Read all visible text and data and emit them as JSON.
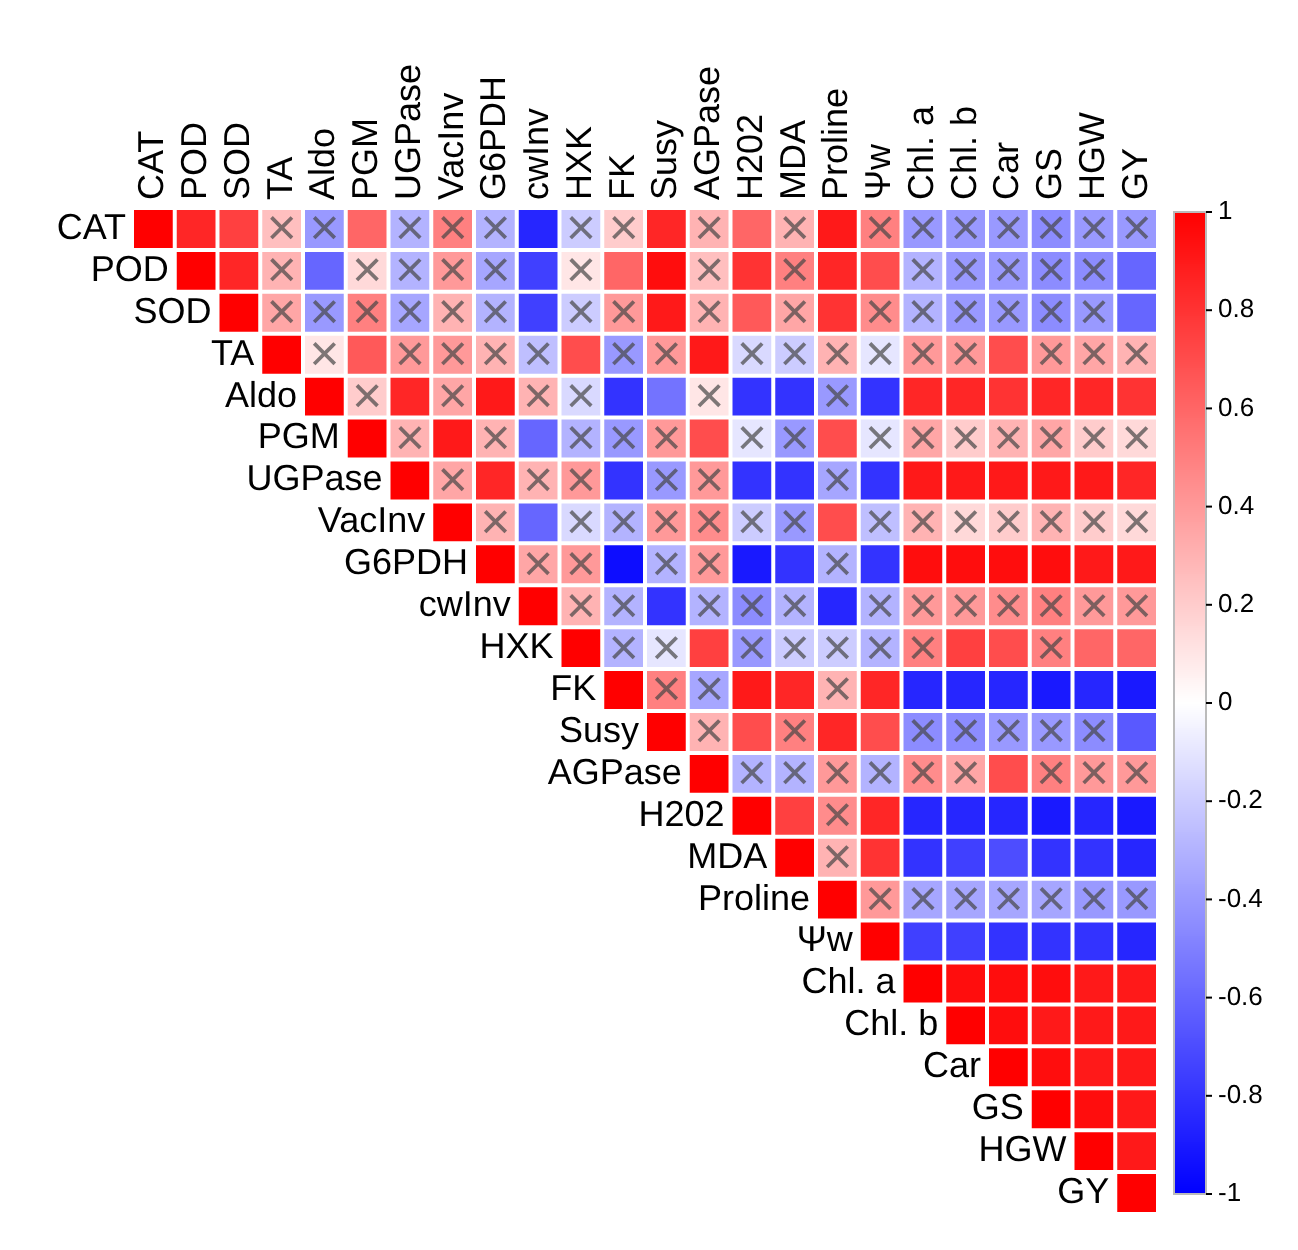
{
  "chart_data": {
    "type": "heatmap",
    "categories": [
      "CAT",
      "POD",
      "SOD",
      "TA",
      "Aldo",
      "PGM",
      "UGPase",
      "VacInv",
      "G6PDH",
      "cwInv",
      "HXK",
      "FK",
      "Susy",
      "AGPase",
      "H202",
      "MDA",
      "Proline",
      "Ψw",
      "Chl. a",
      "Chl. b",
      "Car",
      "GS",
      "HGW",
      "GY"
    ],
    "y_categories": [
      "CAT",
      "POD",
      "SOD",
      "TA",
      "Aldo",
      "PGM",
      "UGPase",
      "VacInv",
      "G6PDH",
      "cwInv",
      "HXK",
      "FK",
      "Susy",
      "AGPase",
      "H202",
      "MDA",
      "Proline",
      "Ψw",
      "Chl. a",
      "Chl. b",
      "Car",
      "GS",
      "HGW",
      "GY"
    ],
    "cells": [
      [
        1,
        0.85,
        0.75,
        0.25,
        -0.4,
        0.6,
        -0.3,
        0.5,
        -0.3,
        -0.85,
        -0.2,
        0.2,
        0.85,
        0.3,
        0.6,
        0.3,
        0.9,
        0.5,
        -0.4,
        -0.4,
        -0.4,
        -0.45,
        -0.4,
        -0.4
      ],
      [
        null,
        1,
        0.85,
        0.3,
        -0.6,
        0.15,
        -0.3,
        0.4,
        -0.35,
        -0.75,
        0.1,
        0.6,
        0.95,
        0.25,
        0.8,
        0.5,
        0.85,
        0.7,
        -0.3,
        -0.4,
        -0.4,
        -0.45,
        -0.45,
        -0.6
      ],
      [
        null,
        null,
        1,
        0.35,
        -0.4,
        0.5,
        -0.35,
        0.3,
        -0.3,
        -0.75,
        -0.2,
        0.4,
        0.9,
        0.3,
        0.65,
        0.35,
        0.8,
        0.45,
        -0.3,
        -0.4,
        -0.4,
        -0.45,
        -0.4,
        -0.6
      ],
      [
        null,
        null,
        null,
        1,
        0.1,
        0.65,
        0.4,
        0.4,
        0.3,
        -0.25,
        0.7,
        -0.4,
        0.4,
        0.9,
        -0.15,
        -0.2,
        0.3,
        -0.1,
        0.4,
        0.4,
        0.7,
        0.4,
        0.35,
        0.3
      ],
      [
        null,
        null,
        null,
        null,
        1,
        0.2,
        0.85,
        0.35,
        0.9,
        0.3,
        -0.15,
        -0.8,
        -0.55,
        0.1,
        -0.8,
        -0.8,
        -0.4,
        -0.8,
        0.85,
        0.85,
        0.8,
        0.85,
        0.85,
        0.8
      ],
      [
        null,
        null,
        null,
        null,
        null,
        1,
        0.3,
        0.9,
        0.3,
        -0.6,
        -0.3,
        -0.4,
        0.4,
        0.7,
        -0.1,
        -0.4,
        0.7,
        -0.1,
        0.35,
        0.2,
        0.3,
        0.35,
        0.2,
        0.15
      ],
      [
        null,
        null,
        null,
        null,
        null,
        null,
        1,
        0.35,
        0.85,
        0.3,
        0.4,
        -0.8,
        -0.4,
        0.4,
        -0.8,
        -0.8,
        -0.35,
        -0.8,
        0.9,
        0.9,
        0.9,
        0.9,
        0.9,
        0.85
      ],
      [
        null,
        null,
        null,
        null,
        null,
        null,
        null,
        1,
        0.3,
        -0.6,
        -0.15,
        -0.3,
        0.4,
        0.45,
        -0.2,
        -0.4,
        0.7,
        -0.25,
        0.3,
        0.15,
        0.2,
        0.3,
        0.2,
        0.15
      ],
      [
        null,
        null,
        null,
        null,
        null,
        null,
        null,
        null,
        1,
        0.35,
        0.4,
        -0.95,
        -0.3,
        0.4,
        -0.9,
        -0.8,
        -0.3,
        -0.8,
        0.95,
        0.95,
        0.95,
        0.95,
        0.9,
        0.9
      ],
      [
        null,
        null,
        null,
        null,
        null,
        null,
        null,
        null,
        null,
        1,
        0.3,
        -0.3,
        -0.8,
        -0.3,
        -0.45,
        -0.3,
        -0.85,
        -0.3,
        0.4,
        0.4,
        0.45,
        0.5,
        0.4,
        0.4
      ],
      [
        null,
        null,
        null,
        null,
        null,
        null,
        null,
        null,
        null,
        null,
        1,
        -0.3,
        -0.1,
        0.75,
        -0.4,
        -0.2,
        -0.2,
        -0.3,
        0.5,
        0.75,
        0.7,
        0.5,
        0.6,
        0.6
      ],
      [
        null,
        null,
        null,
        null,
        null,
        null,
        null,
        null,
        null,
        null,
        null,
        1,
        0.5,
        -0.35,
        0.9,
        0.85,
        0.3,
        0.85,
        -0.85,
        -0.85,
        -0.85,
        -0.9,
        -0.85,
        -0.9
      ],
      [
        null,
        null,
        null,
        null,
        null,
        null,
        null,
        null,
        null,
        null,
        null,
        null,
        1,
        0.3,
        0.7,
        0.5,
        0.85,
        0.7,
        -0.45,
        -0.45,
        -0.4,
        -0.4,
        -0.45,
        -0.65
      ],
      [
        null,
        null,
        null,
        null,
        null,
        null,
        null,
        null,
        null,
        null,
        null,
        null,
        null,
        1,
        -0.3,
        -0.3,
        0.4,
        -0.3,
        0.45,
        0.35,
        0.7,
        0.5,
        0.4,
        0.4
      ],
      [
        null,
        null,
        null,
        null,
        null,
        null,
        null,
        null,
        null,
        null,
        null,
        null,
        null,
        null,
        1,
        0.75,
        0.45,
        0.85,
        -0.85,
        -0.85,
        -0.85,
        -0.9,
        -0.85,
        -0.9
      ],
      [
        null,
        null,
        null,
        null,
        null,
        null,
        null,
        null,
        null,
        null,
        null,
        null,
        null,
        null,
        null,
        1,
        0.3,
        0.8,
        -0.8,
        -0.75,
        -0.7,
        -0.8,
        -0.8,
        -0.85
      ],
      [
        null,
        null,
        null,
        null,
        null,
        null,
        null,
        null,
        null,
        null,
        null,
        null,
        null,
        null,
        null,
        null,
        1,
        0.4,
        -0.35,
        -0.35,
        -0.35,
        -0.35,
        -0.4,
        -0.4
      ],
      [
        null,
        null,
        null,
        null,
        null,
        null,
        null,
        null,
        null,
        null,
        null,
        null,
        null,
        null,
        null,
        null,
        null,
        1,
        -0.75,
        -0.75,
        -0.8,
        -0.8,
        -0.8,
        -0.85
      ],
      [
        null,
        null,
        null,
        null,
        null,
        null,
        null,
        null,
        null,
        null,
        null,
        null,
        null,
        null,
        null,
        null,
        null,
        null,
        1,
        0.95,
        0.95,
        0.95,
        0.9,
        0.9
      ],
      [
        null,
        null,
        null,
        null,
        null,
        null,
        null,
        null,
        null,
        null,
        null,
        null,
        null,
        null,
        null,
        null,
        null,
        null,
        null,
        1,
        0.95,
        0.9,
        0.9,
        0.9
      ],
      [
        null,
        null,
        null,
        null,
        null,
        null,
        null,
        null,
        null,
        null,
        null,
        null,
        null,
        null,
        null,
        null,
        null,
        null,
        null,
        null,
        1,
        0.95,
        0.9,
        0.9
      ],
      [
        null,
        null,
        null,
        null,
        null,
        null,
        null,
        null,
        null,
        null,
        null,
        null,
        null,
        null,
        null,
        null,
        null,
        null,
        null,
        null,
        null,
        1,
        0.95,
        0.9
      ],
      [
        null,
        null,
        null,
        null,
        null,
        null,
        null,
        null,
        null,
        null,
        null,
        null,
        null,
        null,
        null,
        null,
        null,
        null,
        null,
        null,
        null,
        null,
        1,
        0.9
      ],
      [
        null,
        null,
        null,
        null,
        null,
        null,
        null,
        null,
        null,
        null,
        null,
        null,
        null,
        null,
        null,
        null,
        null,
        null,
        null,
        null,
        null,
        null,
        null,
        1
      ]
    ],
    "cell_labels": [
      [
        null,
        null,
        null,
        "×",
        "×",
        null,
        "×",
        "×",
        "×",
        null,
        "×",
        "×",
        null,
        "×",
        null,
        "×",
        null,
        "×",
        "×",
        "×",
        "×",
        "×",
        "×",
        "×"
      ],
      [
        null,
        null,
        null,
        "×",
        null,
        "×",
        "×",
        "×",
        "×",
        null,
        "×",
        null,
        null,
        "×",
        null,
        "×",
        null,
        null,
        "×",
        "×",
        "×",
        "×",
        "×",
        null
      ],
      [
        null,
        null,
        null,
        "×",
        "×",
        "×",
        "×",
        "×",
        "×",
        null,
        "×",
        "×",
        null,
        "×",
        null,
        "×",
        null,
        "×",
        "×",
        "×",
        "×",
        "×",
        "×",
        null
      ],
      [
        null,
        null,
        null,
        null,
        "×",
        null,
        "×",
        "×",
        "×",
        "×",
        null,
        "×",
        "×",
        null,
        "×",
        "×",
        "×",
        "×",
        "×",
        "×",
        null,
        "×",
        "×",
        "×"
      ],
      [
        null,
        null,
        null,
        null,
        null,
        "×",
        null,
        "×",
        null,
        "×",
        "×",
        null,
        null,
        "×",
        null,
        null,
        "×",
        null,
        null,
        null,
        null,
        null,
        null,
        null
      ],
      [
        null,
        null,
        null,
        null,
        null,
        null,
        "×",
        null,
        "×",
        null,
        "×",
        "×",
        "×",
        null,
        "×",
        "×",
        null,
        "×",
        "×",
        "×",
        "×",
        "×",
        "×",
        "×"
      ],
      [
        null,
        null,
        null,
        null,
        null,
        null,
        null,
        "×",
        null,
        "×",
        "×",
        null,
        "×",
        "×",
        null,
        null,
        "×",
        null,
        null,
        null,
        null,
        null,
        null,
        null
      ],
      [
        null,
        null,
        null,
        null,
        null,
        null,
        null,
        null,
        "×",
        null,
        "×",
        "×",
        "×",
        "×",
        "×",
        "×",
        null,
        "×",
        "×",
        "×",
        "×",
        "×",
        "×",
        "×"
      ],
      [
        null,
        null,
        null,
        null,
        null,
        null,
        null,
        null,
        null,
        "×",
        "×",
        null,
        "×",
        "×",
        null,
        null,
        "×",
        null,
        null,
        null,
        null,
        null,
        null,
        null
      ],
      [
        null,
        null,
        null,
        null,
        null,
        null,
        null,
        null,
        null,
        null,
        "×",
        "×",
        null,
        "×",
        "×",
        "×",
        null,
        "×",
        "×",
        "×",
        "×",
        "×",
        "×",
        "×"
      ],
      [
        null,
        null,
        null,
        null,
        null,
        null,
        null,
        null,
        null,
        null,
        null,
        "×",
        "×",
        null,
        "×",
        "×",
        "×",
        "×",
        "×",
        null,
        null,
        "×",
        null,
        null
      ],
      [
        null,
        null,
        null,
        null,
        null,
        null,
        null,
        null,
        null,
        null,
        null,
        null,
        "×",
        "×",
        null,
        null,
        "×",
        null,
        null,
        null,
        null,
        null,
        null,
        null
      ],
      [
        null,
        null,
        null,
        null,
        null,
        null,
        null,
        null,
        null,
        null,
        null,
        null,
        null,
        "×",
        null,
        "×",
        null,
        null,
        "×",
        "×",
        "×",
        "×",
        "×",
        null
      ],
      [
        null,
        null,
        null,
        null,
        null,
        null,
        null,
        null,
        null,
        null,
        null,
        null,
        null,
        null,
        "×",
        "×",
        "×",
        "×",
        "×",
        "×",
        null,
        "×",
        "×",
        "×"
      ],
      [
        null,
        null,
        null,
        null,
        null,
        null,
        null,
        null,
        null,
        null,
        null,
        null,
        null,
        null,
        null,
        null,
        "×",
        null,
        null,
        null,
        null,
        null,
        null,
        null
      ],
      [
        null,
        null,
        null,
        null,
        null,
        null,
        null,
        null,
        null,
        null,
        null,
        null,
        null,
        null,
        null,
        null,
        "×",
        null,
        null,
        null,
        null,
        null,
        null,
        null
      ],
      [
        null,
        null,
        null,
        null,
        null,
        null,
        null,
        null,
        null,
        null,
        null,
        null,
        null,
        null,
        null,
        null,
        null,
        "×",
        "×",
        "×",
        "×",
        "×",
        "×",
        "×"
      ],
      [
        null,
        null,
        null,
        null,
        null,
        null,
        null,
        null,
        null,
        null,
        null,
        null,
        null,
        null,
        null,
        null,
        null,
        null,
        null,
        null,
        null,
        null,
        null,
        null
      ],
      [
        null,
        null,
        null,
        null,
        null,
        null,
        null,
        null,
        null,
        null,
        null,
        null,
        null,
        null,
        null,
        null,
        null,
        null,
        null,
        null,
        null,
        null,
        null,
        null
      ],
      [
        null,
        null,
        null,
        null,
        null,
        null,
        null,
        null,
        null,
        null,
        null,
        null,
        null,
        null,
        null,
        null,
        null,
        null,
        null,
        null,
        null,
        null,
        null,
        null
      ],
      [
        null,
        null,
        null,
        null,
        null,
        null,
        null,
        null,
        null,
        null,
        null,
        null,
        null,
        null,
        null,
        null,
        null,
        null,
        null,
        null,
        null,
        null,
        null,
        null
      ],
      [
        null,
        null,
        null,
        null,
        null,
        null,
        null,
        null,
        null,
        null,
        null,
        null,
        null,
        null,
        null,
        null,
        null,
        null,
        null,
        null,
        null,
        null,
        null,
        null
      ],
      [
        null,
        null,
        null,
        null,
        null,
        null,
        null,
        null,
        null,
        null,
        null,
        null,
        null,
        null,
        null,
        null,
        null,
        null,
        null,
        null,
        null,
        null,
        null,
        null
      ],
      [
        null,
        null,
        null,
        null,
        null,
        null,
        null,
        null,
        null,
        null,
        null,
        null,
        null,
        null,
        null,
        null,
        null,
        null,
        null,
        null,
        null,
        null,
        null,
        null
      ]
    ],
    "clim": [
      -1,
      1
    ],
    "cticks": [
      -1,
      -0.8,
      -0.6,
      -0.4,
      -0.2,
      0,
      0.2,
      0.4,
      0.6,
      0.8,
      1
    ]
  }
}
